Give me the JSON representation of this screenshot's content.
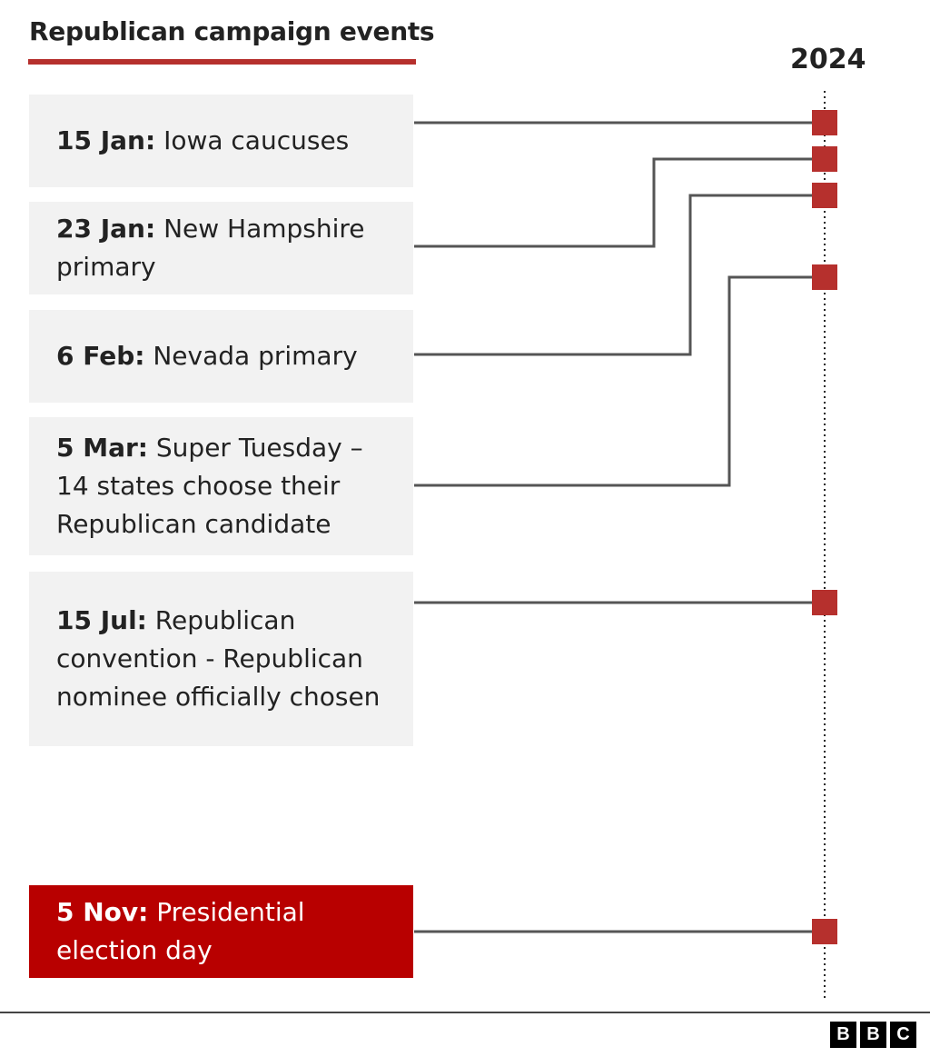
{
  "title": "Republican campaign events",
  "year_label": "2024",
  "colors": {
    "accent": "#b6302d",
    "highlight_box": "#b80000",
    "box_bg": "#f2f2f2",
    "connector": "#555555",
    "marker": "#b6302d"
  },
  "events": [
    {
      "date": "15 Jan:",
      "label": "Iowa caucuses"
    },
    {
      "date": "23 Jan:",
      "label": "New Hampshire primary"
    },
    {
      "date": "6 Feb:",
      "label": "Nevada primary"
    },
    {
      "date": "5 Mar:",
      "label": "Super Tuesday – 14 states choose their Republican candidate"
    },
    {
      "date": "15 Jul:",
      "label": "Republican convention - Republican nominee officially chosen"
    },
    {
      "date": "5 Nov:",
      "label": "Presidential election day"
    }
  ],
  "logo": {
    "letters": [
      "B",
      "B",
      "C"
    ]
  }
}
